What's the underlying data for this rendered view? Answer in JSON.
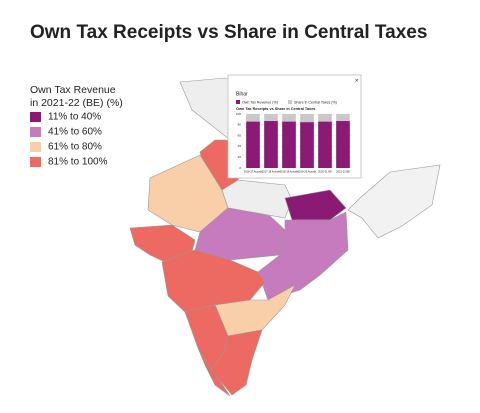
{
  "header": {
    "title": "Own Tax Receipts vs Share in Central Taxes"
  },
  "legend": {
    "title_lines": [
      "Own Tax Revenue",
      "in 2021-22 (BE) (%)"
    ],
    "items": [
      {
        "label": "11% to 40%",
        "color": "#8b1a74"
      },
      {
        "label": "41% to 60%",
        "color": "#c57bbd"
      },
      {
        "label": "61% to 80%",
        "color": "#f8cfa8"
      },
      {
        "label": "81% to 100%",
        "color": "#ed6a62"
      }
    ]
  },
  "popup": {
    "state": "Bihar",
    "chart_data": {
      "type": "bar",
      "stacked": true,
      "title": "Own Tax Receipts vs Share in Central Taxes",
      "categories": [
        "2016-17 Actuals",
        "2017-18 Actuals",
        "2018-19 Actuals",
        "2019-20 Actuals",
        "2020-21 RE",
        "2021-22 BE"
      ],
      "series": [
        {
          "name": "Own Tax Revenue (%)",
          "color": "#8b1a74",
          "values": [
            86,
            87,
            86,
            85,
            86,
            87
          ]
        },
        {
          "name": "Share in Central Taxes (%)",
          "color": "#c9c9c9",
          "values": [
            14,
            13,
            14,
            15,
            14,
            13
          ]
        }
      ],
      "ylim": [
        0,
        100
      ],
      "yticks": [
        0,
        20,
        40,
        60,
        80,
        100
      ],
      "grid": true
    }
  }
}
